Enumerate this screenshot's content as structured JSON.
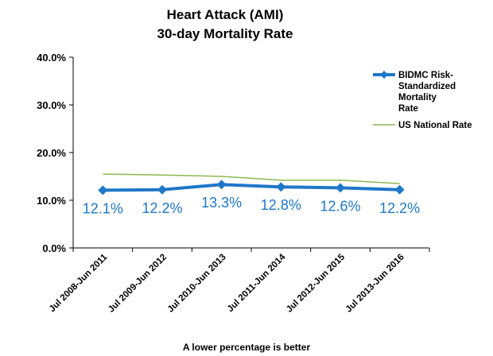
{
  "chart_data": {
    "type": "line",
    "title": [
      "Heart Attack (AMI)",
      "30-day Mortality Rate"
    ],
    "categories": [
      "Jul 2008-Jun 2011",
      "Jul 2009-Jun 2012",
      "Jul 2010-Jun 2013",
      "Jul 2011-Jun 2014",
      "Jul 2012-Jun 2015",
      "Jul 2013-Jun 2016"
    ],
    "y_ticks": [
      "0.0%",
      "10.0%",
      "20.0%",
      "30.0%",
      "40.0%"
    ],
    "ylim": [
      0,
      40
    ],
    "series": [
      {
        "name": "BIDMC Risk-Standardized Mortality Rate",
        "legend_lines": [
          "BIDMC Risk-",
          "Standardized",
          "Mortality",
          "Rate"
        ],
        "values": [
          12.1,
          12.2,
          13.3,
          12.8,
          12.6,
          12.2
        ],
        "data_labels": [
          "12.1%",
          "12.2%",
          "13.3%",
          "12.8%",
          "12.6%",
          "12.2%"
        ],
        "color": "#1f77c8",
        "marker": "diamond"
      },
      {
        "name": "US National Rate",
        "values": [
          15.5,
          15.3,
          15.0,
          14.2,
          14.2,
          13.5
        ],
        "color": "#8db850"
      }
    ],
    "footnote": "A lower percentage is better",
    "legend_position": "right",
    "grid": false
  }
}
